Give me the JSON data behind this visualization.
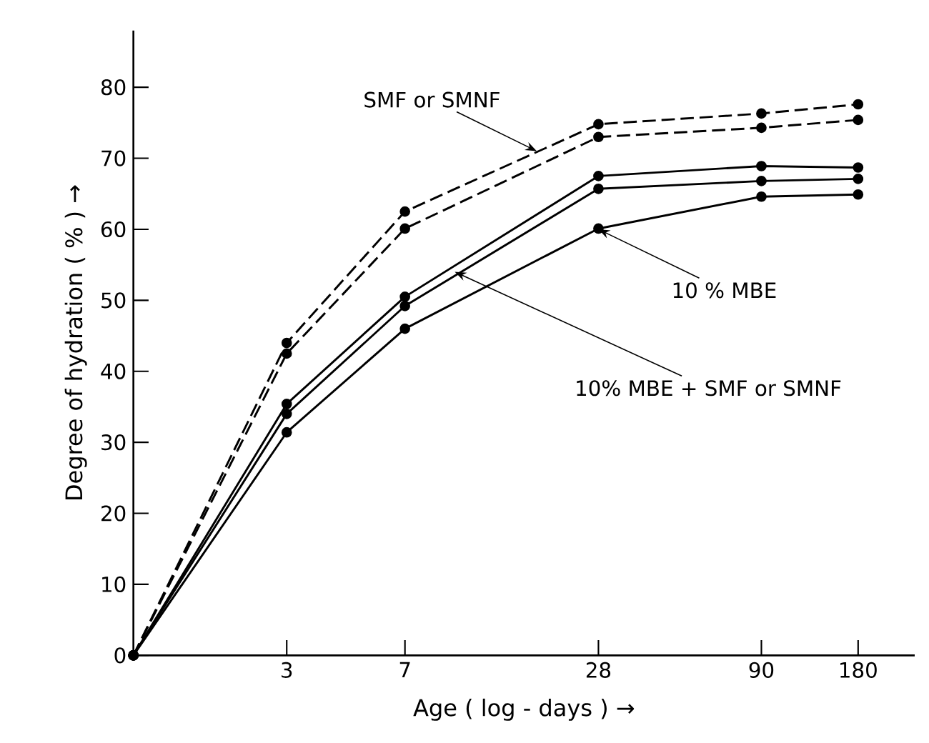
{
  "chart_data": {
    "type": "line",
    "xlabel": "Age ( log - days ) →",
    "ylabel": "Degree of hydration ( % ) →",
    "log": "x",
    "xlim": [
      1,
      270
    ],
    "xticks": [
      3,
      7,
      28,
      90,
      180
    ],
    "ylim": [
      0,
      88
    ],
    "yticks": [
      0,
      10,
      20,
      30,
      40,
      50,
      60,
      70,
      80
    ],
    "x": [
      1,
      3,
      7,
      28,
      90,
      180
    ],
    "marker": "circle",
    "series": [
      {
        "color": "#000000",
        "line_style": "dashed",
        "values": [
          0,
          44.0,
          62.5,
          74.8,
          76.3,
          77.6
        ]
      },
      {
        "color": "#000000",
        "line_style": "dashed",
        "values": [
          0,
          42.5,
          60.1,
          73.0,
          74.3,
          75.4
        ]
      },
      {
        "color": "#000000",
        "line_style": "solid",
        "values": [
          0,
          35.4,
          50.5,
          67.5,
          68.9,
          68.7
        ]
      },
      {
        "color": "#000000",
        "line_style": "solid",
        "values": [
          0,
          34.0,
          49.2,
          65.7,
          66.8,
          67.1
        ]
      },
      {
        "color": "#000000",
        "line_style": "solid",
        "values": [
          0,
          31.4,
          46.0,
          60.1,
          64.6,
          64.9
        ]
      }
    ],
    "annotations": [
      {
        "text": "SMF or SMNF",
        "x": 18,
        "y": 71
      },
      {
        "text": "10 % MBE",
        "x": 28,
        "y": 60
      },
      {
        "text": "10% MBE + SMF or SMNF",
        "x": 10,
        "y": 54
      }
    ]
  }
}
